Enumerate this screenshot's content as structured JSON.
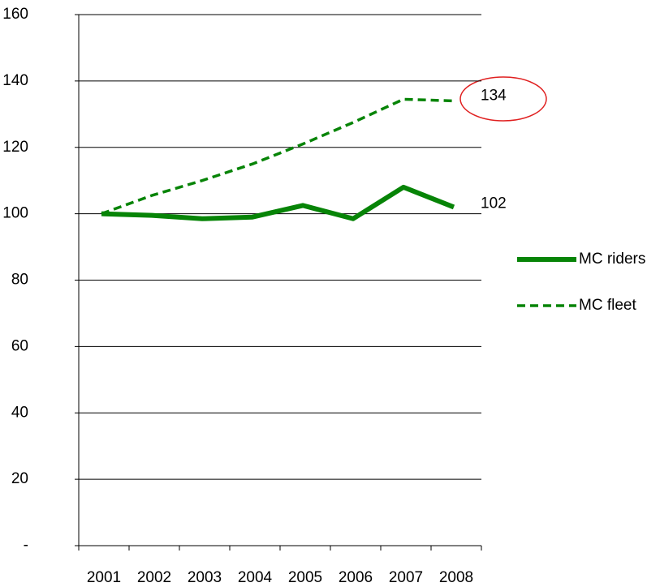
{
  "chart_data": {
    "type": "line",
    "categories": [
      "2001",
      "2002",
      "2003",
      "2004",
      "2005",
      "2006",
      "2007",
      "2008"
    ],
    "series": [
      {
        "name": "MC riders",
        "color": "#078407",
        "values": [
          100,
          99.5,
          98.5,
          99,
          102.5,
          98.5,
          108,
          102
        ]
      },
      {
        "name": "MC fleet",
        "color": "#078407",
        "values": [
          100,
          105.5,
          110,
          115,
          121,
          127.5,
          134.5,
          134
        ]
      }
    ],
    "ylim": [
      0,
      160
    ],
    "yticks": [
      {
        "value": 0,
        "label": "-"
      },
      20,
      40,
      60,
      80,
      100,
      120,
      140,
      160
    ],
    "grid": true,
    "legend": "right"
  }
}
